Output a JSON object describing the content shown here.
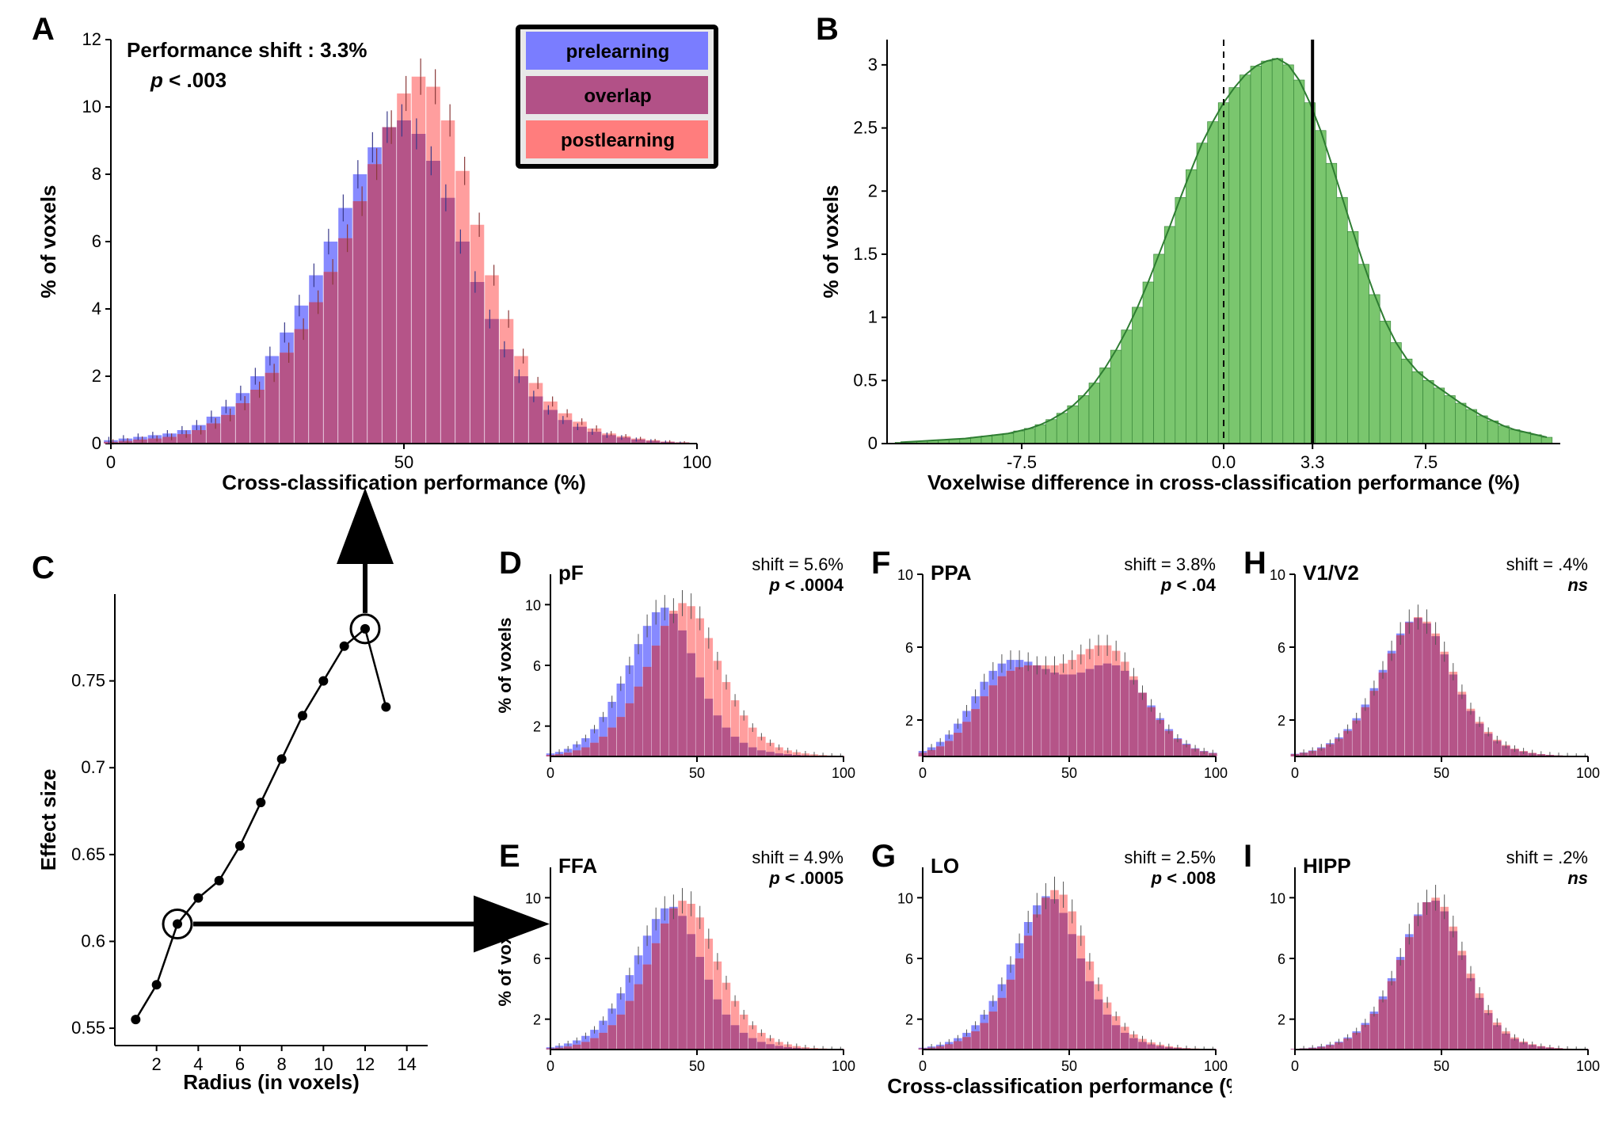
{
  "colors": {
    "pre": "#7a7dff",
    "post": "#ff7d7d",
    "overlap": "#b25187",
    "green": "#7ac66e",
    "green_edge": "#2e7d32",
    "axis": "#000000",
    "bg": "#ffffff",
    "err": "#404040",
    "legend_bg": "#e8e8e8"
  },
  "fonts": {
    "panel_letter_pt": 40,
    "axis_label_pt": 26,
    "tick_pt": 22,
    "anno_pt": 26,
    "legend_pt": 24
  },
  "legend": {
    "items": [
      {
        "label": "prelearning",
        "color": "#7a7dff"
      },
      {
        "label": "overlap",
        "color": "#b25187"
      },
      {
        "label": "postlearning",
        "color": "#ff7d7d"
      }
    ]
  },
  "panelA": {
    "letter": "A",
    "type": "histogram_overlay",
    "xlabel": "Cross-classification performance (%)",
    "ylabel": "% of voxels",
    "xlim": [
      0,
      100
    ],
    "xtick_step": 50,
    "xticks": [
      0,
      50,
      100
    ],
    "ylim": [
      0,
      12
    ],
    "yticks": [
      0,
      2,
      4,
      6,
      8,
      10,
      12
    ],
    "annotation1": "Performance shift : 3.3%",
    "annotation2_prefix": "p",
    "annotation2_suffix": " < .003",
    "bins_x": [
      0,
      2.5,
      5,
      7.5,
      10,
      12.5,
      15,
      17.5,
      20,
      22.5,
      25,
      27.5,
      30,
      32.5,
      35,
      37.5,
      40,
      42.5,
      45,
      47.5,
      50,
      52.5,
      55,
      57.5,
      60,
      62.5,
      65,
      67.5,
      70,
      72.5,
      75,
      77.5,
      80,
      82.5,
      85,
      87.5,
      90,
      92.5,
      95,
      97.5
    ],
    "pre": [
      0.1,
      0.15,
      0.2,
      0.25,
      0.3,
      0.4,
      0.55,
      0.8,
      1.1,
      1.5,
      2.0,
      2.6,
      3.3,
      4.1,
      5.0,
      6.0,
      7.0,
      8.0,
      8.8,
      9.4,
      9.6,
      9.2,
      8.4,
      7.3,
      6.0,
      4.8,
      3.7,
      2.8,
      2.0,
      1.4,
      1.0,
      0.7,
      0.5,
      0.35,
      0.25,
      0.18,
      0.12,
      0.08,
      0.05,
      0.03
    ],
    "post": [
      0.05,
      0.08,
      0.12,
      0.15,
      0.2,
      0.28,
      0.4,
      0.6,
      0.85,
      1.2,
      1.6,
      2.1,
      2.7,
      3.4,
      4.2,
      5.1,
      6.1,
      7.2,
      8.3,
      9.4,
      10.4,
      10.9,
      10.6,
      9.6,
      8.1,
      6.5,
      5.0,
      3.7,
      2.6,
      1.8,
      1.25,
      0.9,
      0.65,
      0.45,
      0.3,
      0.22,
      0.15,
      0.1,
      0.06,
      0.04
    ],
    "err_pre": [
      0.1,
      0.1,
      0.1,
      0.1,
      0.1,
      0.12,
      0.15,
      0.18,
      0.2,
      0.22,
      0.25,
      0.28,
      0.3,
      0.32,
      0.35,
      0.38,
      0.4,
      0.42,
      0.45,
      0.47,
      0.48,
      0.46,
      0.43,
      0.4,
      0.36,
      0.32,
      0.28,
      0.24,
      0.2,
      0.17,
      0.14,
      0.12,
      0.1,
      0.09,
      0.08,
      0.07,
      0.06,
      0.05,
      0.04,
      0.03
    ],
    "err_post": [
      0.08,
      0.08,
      0.09,
      0.09,
      0.1,
      0.11,
      0.13,
      0.16,
      0.19,
      0.21,
      0.24,
      0.27,
      0.3,
      0.32,
      0.35,
      0.38,
      0.41,
      0.44,
      0.47,
      0.5,
      0.52,
      0.54,
      0.52,
      0.48,
      0.42,
      0.36,
      0.31,
      0.26,
      0.22,
      0.18,
      0.15,
      0.12,
      0.1,
      0.09,
      0.07,
      0.06,
      0.05,
      0.04,
      0.04,
      0.03
    ]
  },
  "panelB": {
    "letter": "B",
    "type": "histogram",
    "xlabel": "Voxelwise difference in cross-classification performance (%)",
    "ylabel": "% of voxels",
    "xlim": [
      -12.5,
      12.5
    ],
    "xticks": [
      -7.5,
      0,
      3.3,
      7.5
    ],
    "xtick_labels": [
      "-7.5",
      "0.0",
      "3.3",
      "7.5"
    ],
    "ylim": [
      0,
      3.2
    ],
    "yticks": [
      0,
      0.5,
      1.0,
      1.5,
      2.0,
      2.5,
      3.0
    ],
    "dashed_x": 0.0,
    "solid_x": 3.3,
    "bins_x": [
      -12,
      -11.6,
      -11.2,
      -10.8,
      -10.4,
      -10,
      -9.6,
      -9.2,
      -8.8,
      -8.4,
      -8,
      -7.6,
      -7.2,
      -6.8,
      -6.4,
      -6,
      -5.6,
      -5.2,
      -4.8,
      -4.4,
      -4,
      -3.6,
      -3.2,
      -2.8,
      -2.4,
      -2,
      -1.6,
      -1.2,
      -0.8,
      -0.4,
      0,
      0.4,
      0.8,
      1.2,
      1.6,
      2,
      2.4,
      2.8,
      3.2,
      3.6,
      4,
      4.4,
      4.8,
      5.2,
      5.6,
      6,
      6.4,
      6.8,
      7.2,
      7.6,
      8,
      8.4,
      8.8,
      9.2,
      9.6,
      10,
      10.4,
      10.8,
      11.2,
      11.6,
      12
    ],
    "values": [
      0.01,
      0.015,
      0.02,
      0.025,
      0.03,
      0.035,
      0.04,
      0.05,
      0.06,
      0.07,
      0.08,
      0.1,
      0.12,
      0.15,
      0.19,
      0.24,
      0.3,
      0.38,
      0.48,
      0.6,
      0.74,
      0.9,
      1.08,
      1.28,
      1.5,
      1.72,
      1.95,
      2.17,
      2.38,
      2.55,
      2.7,
      2.82,
      2.92,
      2.99,
      3.03,
      3.05,
      3.0,
      2.88,
      2.7,
      2.48,
      2.22,
      1.95,
      1.68,
      1.42,
      1.18,
      0.97,
      0.8,
      0.67,
      0.57,
      0.5,
      0.44,
      0.38,
      0.32,
      0.27,
      0.22,
      0.18,
      0.14,
      0.11,
      0.09,
      0.07,
      0.05
    ]
  },
  "panelC": {
    "letter": "C",
    "type": "line_scatter",
    "xlabel": "Radius (in voxels)",
    "ylabel": "Effect size",
    "xlim": [
      0,
      15
    ],
    "xticks": [
      2,
      4,
      6,
      8,
      10,
      12,
      14
    ],
    "ylim": [
      0.54,
      0.8
    ],
    "yticks": [
      0.55,
      0.6,
      0.65,
      0.7,
      0.75
    ],
    "x": [
      1,
      2,
      3,
      4,
      5,
      6,
      7,
      8,
      9,
      10,
      11,
      12,
      13
    ],
    "y": [
      0.555,
      0.575,
      0.61,
      0.625,
      0.635,
      0.655,
      0.68,
      0.705,
      0.73,
      0.75,
      0.77,
      0.78,
      0.735
    ],
    "circled_idx": [
      2,
      11
    ],
    "marker_size": 6,
    "line_width": 2.5
  },
  "small_panels_common": {
    "xlim": [
      0,
      100
    ],
    "xticks": [
      0,
      50,
      100
    ],
    "ylim_top": [
      0,
      12
    ],
    "yticks_top": [
      2,
      6,
      10
    ],
    "ylim_mid": [
      0,
      12
    ],
    "yticks_mid": [
      2,
      6,
      10
    ],
    "xlabel": "Cross-classification performance (%)",
    "ylabel": "% of voxels",
    "bins_x": [
      0,
      3,
      6,
      9,
      12,
      15,
      18,
      21,
      24,
      27,
      30,
      33,
      36,
      39,
      42,
      45,
      48,
      51,
      54,
      57,
      60,
      63,
      66,
      69,
      72,
      75,
      78,
      81,
      84,
      87,
      90,
      93,
      96,
      99
    ]
  },
  "panelD": {
    "letter": "D",
    "region": "pF",
    "shift": "shift = 5.6%",
    "p_prefix": "p",
    "p_suffix": " < .0004",
    "pre": [
      0.2,
      0.3,
      0.5,
      0.8,
      1.2,
      1.8,
      2.6,
      3.6,
      4.8,
      6.0,
      7.4,
      8.6,
      9.5,
      9.8,
      9.4,
      8.3,
      6.8,
      5.2,
      3.8,
      2.7,
      1.9,
      1.3,
      0.9,
      0.6,
      0.4,
      0.3,
      0.2,
      0.15,
      0.1,
      0.07,
      0.05,
      0.03,
      0.02,
      0.01
    ],
    "post": [
      0.1,
      0.15,
      0.25,
      0.4,
      0.6,
      0.9,
      1.3,
      1.9,
      2.6,
      3.5,
      4.6,
      5.9,
      7.3,
      8.6,
      9.6,
      10.1,
      9.9,
      9.1,
      7.8,
      6.3,
      4.9,
      3.7,
      2.7,
      1.9,
      1.3,
      0.9,
      0.6,
      0.4,
      0.28,
      0.2,
      0.14,
      0.09,
      0.06,
      0.04
    ]
  },
  "panelE": {
    "letter": "E",
    "region": "FFA",
    "shift": "shift = 4.9%",
    "p_prefix": "p",
    "p_suffix": " < .0005",
    "pre": [
      0.15,
      0.25,
      0.4,
      0.6,
      0.9,
      1.3,
      1.9,
      2.7,
      3.7,
      4.9,
      6.2,
      7.5,
      8.6,
      9.3,
      9.4,
      8.8,
      7.6,
      6.1,
      4.6,
      3.3,
      2.3,
      1.6,
      1.1,
      0.75,
      0.5,
      0.35,
      0.24,
      0.16,
      0.11,
      0.07,
      0.05,
      0.03,
      0.02,
      0.01
    ],
    "post": [
      0.08,
      0.12,
      0.2,
      0.32,
      0.5,
      0.75,
      1.1,
      1.6,
      2.3,
      3.2,
      4.3,
      5.6,
      7.0,
      8.3,
      9.3,
      9.8,
      9.6,
      8.7,
      7.3,
      5.8,
      4.4,
      3.2,
      2.3,
      1.6,
      1.1,
      0.75,
      0.5,
      0.34,
      0.23,
      0.15,
      0.1,
      0.07,
      0.04,
      0.03
    ]
  },
  "panelF": {
    "letter": "F",
    "region": "PPA",
    "shift": "shift = 3.8%",
    "p_prefix": "p",
    "p_suffix": " < .04",
    "ylim": [
      0,
      10
    ],
    "yticks": [
      2,
      6,
      10
    ],
    "pre": [
      0.3,
      0.5,
      0.8,
      1.2,
      1.8,
      2.5,
      3.3,
      4.1,
      4.7,
      5.1,
      5.3,
      5.3,
      5.2,
      5.0,
      4.8,
      4.6,
      4.5,
      4.5,
      4.6,
      4.8,
      5.0,
      5.1,
      5.0,
      4.7,
      4.2,
      3.5,
      2.8,
      2.1,
      1.5,
      1.0,
      0.7,
      0.45,
      0.3,
      0.2
    ],
    "post": [
      0.2,
      0.35,
      0.55,
      0.85,
      1.3,
      1.9,
      2.6,
      3.3,
      3.9,
      4.4,
      4.7,
      4.9,
      5.0,
      5.0,
      5.0,
      5.0,
      5.1,
      5.3,
      5.6,
      5.9,
      6.1,
      6.1,
      5.8,
      5.2,
      4.4,
      3.5,
      2.7,
      2.0,
      1.4,
      0.95,
      0.65,
      0.42,
      0.28,
      0.18
    ]
  },
  "panelG": {
    "letter": "G",
    "region": "LO",
    "shift": "shift = 2.5%",
    "p_prefix": "p",
    "p_suffix": " < .008",
    "pre": [
      0.12,
      0.2,
      0.32,
      0.5,
      0.75,
      1.1,
      1.6,
      2.3,
      3.2,
      4.3,
      5.6,
      7.0,
      8.4,
      9.5,
      10.1,
      9.9,
      9.0,
      7.6,
      6.0,
      4.5,
      3.3,
      2.3,
      1.6,
      1.1,
      0.75,
      0.5,
      0.34,
      0.23,
      0.15,
      0.1,
      0.07,
      0.04,
      0.03,
      0.02
    ],
    "post": [
      0.08,
      0.13,
      0.22,
      0.35,
      0.55,
      0.82,
      1.2,
      1.75,
      2.5,
      3.4,
      4.6,
      6.0,
      7.5,
      8.9,
      10.0,
      10.5,
      10.2,
      9.1,
      7.5,
      5.8,
      4.3,
      3.1,
      2.2,
      1.5,
      1.0,
      0.7,
      0.47,
      0.32,
      0.22,
      0.15,
      0.1,
      0.07,
      0.04,
      0.03
    ]
  },
  "panelH": {
    "letter": "H",
    "region": "V1/V2",
    "shift": "shift = .4%",
    "p_label": "ns",
    "ylim": [
      0,
      10
    ],
    "yticks": [
      2,
      6,
      10
    ],
    "pre": [
      0.15,
      0.22,
      0.33,
      0.5,
      0.73,
      1.05,
      1.5,
      2.1,
      2.85,
      3.75,
      4.75,
      5.8,
      6.75,
      7.4,
      7.6,
      7.3,
      6.6,
      5.6,
      4.5,
      3.4,
      2.5,
      1.8,
      1.25,
      0.85,
      0.58,
      0.4,
      0.27,
      0.18,
      0.12,
      0.08,
      0.05,
      0.03,
      0.02,
      0.01
    ],
    "post": [
      0.13,
      0.2,
      0.3,
      0.45,
      0.67,
      0.97,
      1.4,
      1.97,
      2.7,
      3.6,
      4.6,
      5.65,
      6.65,
      7.35,
      7.65,
      7.4,
      6.75,
      5.75,
      4.65,
      3.55,
      2.62,
      1.9,
      1.35,
      0.92,
      0.63,
      0.43,
      0.3,
      0.2,
      0.13,
      0.09,
      0.06,
      0.04,
      0.02,
      0.01
    ]
  },
  "panelI": {
    "letter": "I",
    "region": "HIPP",
    "shift": "shift = .2%",
    "p_label": "ns",
    "pre": [
      0.05,
      0.08,
      0.13,
      0.21,
      0.33,
      0.52,
      0.8,
      1.2,
      1.75,
      2.5,
      3.5,
      4.7,
      6.1,
      7.6,
      8.9,
      9.7,
      9.8,
      9.1,
      7.8,
      6.2,
      4.7,
      3.4,
      2.4,
      1.6,
      1.05,
      0.7,
      0.46,
      0.3,
      0.2,
      0.13,
      0.08,
      0.05,
      0.03,
      0.02
    ],
    "post": [
      0.04,
      0.07,
      0.11,
      0.18,
      0.29,
      0.46,
      0.72,
      1.1,
      1.62,
      2.35,
      3.3,
      4.5,
      5.9,
      7.4,
      8.8,
      9.7,
      10.0,
      9.4,
      8.1,
      6.5,
      5.0,
      3.7,
      2.6,
      1.78,
      1.2,
      0.8,
      0.53,
      0.35,
      0.23,
      0.15,
      0.1,
      0.06,
      0.04,
      0.02
    ]
  }
}
